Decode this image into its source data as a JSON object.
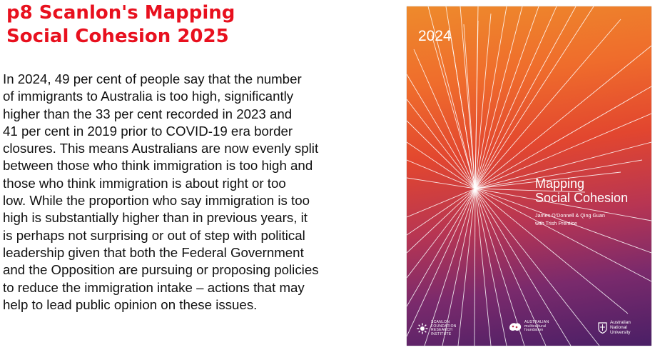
{
  "heading": {
    "line1": "p8 Scanlon's Mapping",
    "line2": "Social Cohesion  2025"
  },
  "body_lines": [
    "In 2024, 49 per cent of people say that the number",
    "of immigrants to Australia is too high, significantly",
    "higher than the 33 per cent recorded in 2023 and",
    "41 per cent in 2019 prior to COVID-19 era border",
    "closures. This means Australians are now evenly split",
    "between those who think immigration is too high and",
    "those who think immigration is about right or too",
    "low. While the proportion who say immigration is too",
    "high is substantially higher than in previous years, it",
    "is perhaps not surprising or out of step with political",
    "leadership given that both the Federal Government",
    "and the Opposition are pursuing or proposing policies",
    "to reduce the immigration intake – actions that may",
    "help to lead public opinion on these issues."
  ],
  "cover": {
    "year": "2024",
    "title_line1": "Mapping",
    "title_line2": "Social Cohesion",
    "authors_line1": "James O'Donnell & Qing Guan",
    "authors_line2": "with Trish Prentice",
    "logos": {
      "scanlon": [
        "SCANLON",
        "FOUNDATION",
        "RESEARCH",
        "INSTITUTE"
      ],
      "multicultural": [
        "AUSTRALIAN",
        "multicultural",
        "foundation"
      ],
      "anu": [
        "Australian",
        "National",
        "University"
      ]
    },
    "colors": {
      "top": "#ee8a2c",
      "middle": "#e2462f",
      "bottom": "#4a1f66",
      "lines": "#ffffff"
    }
  }
}
